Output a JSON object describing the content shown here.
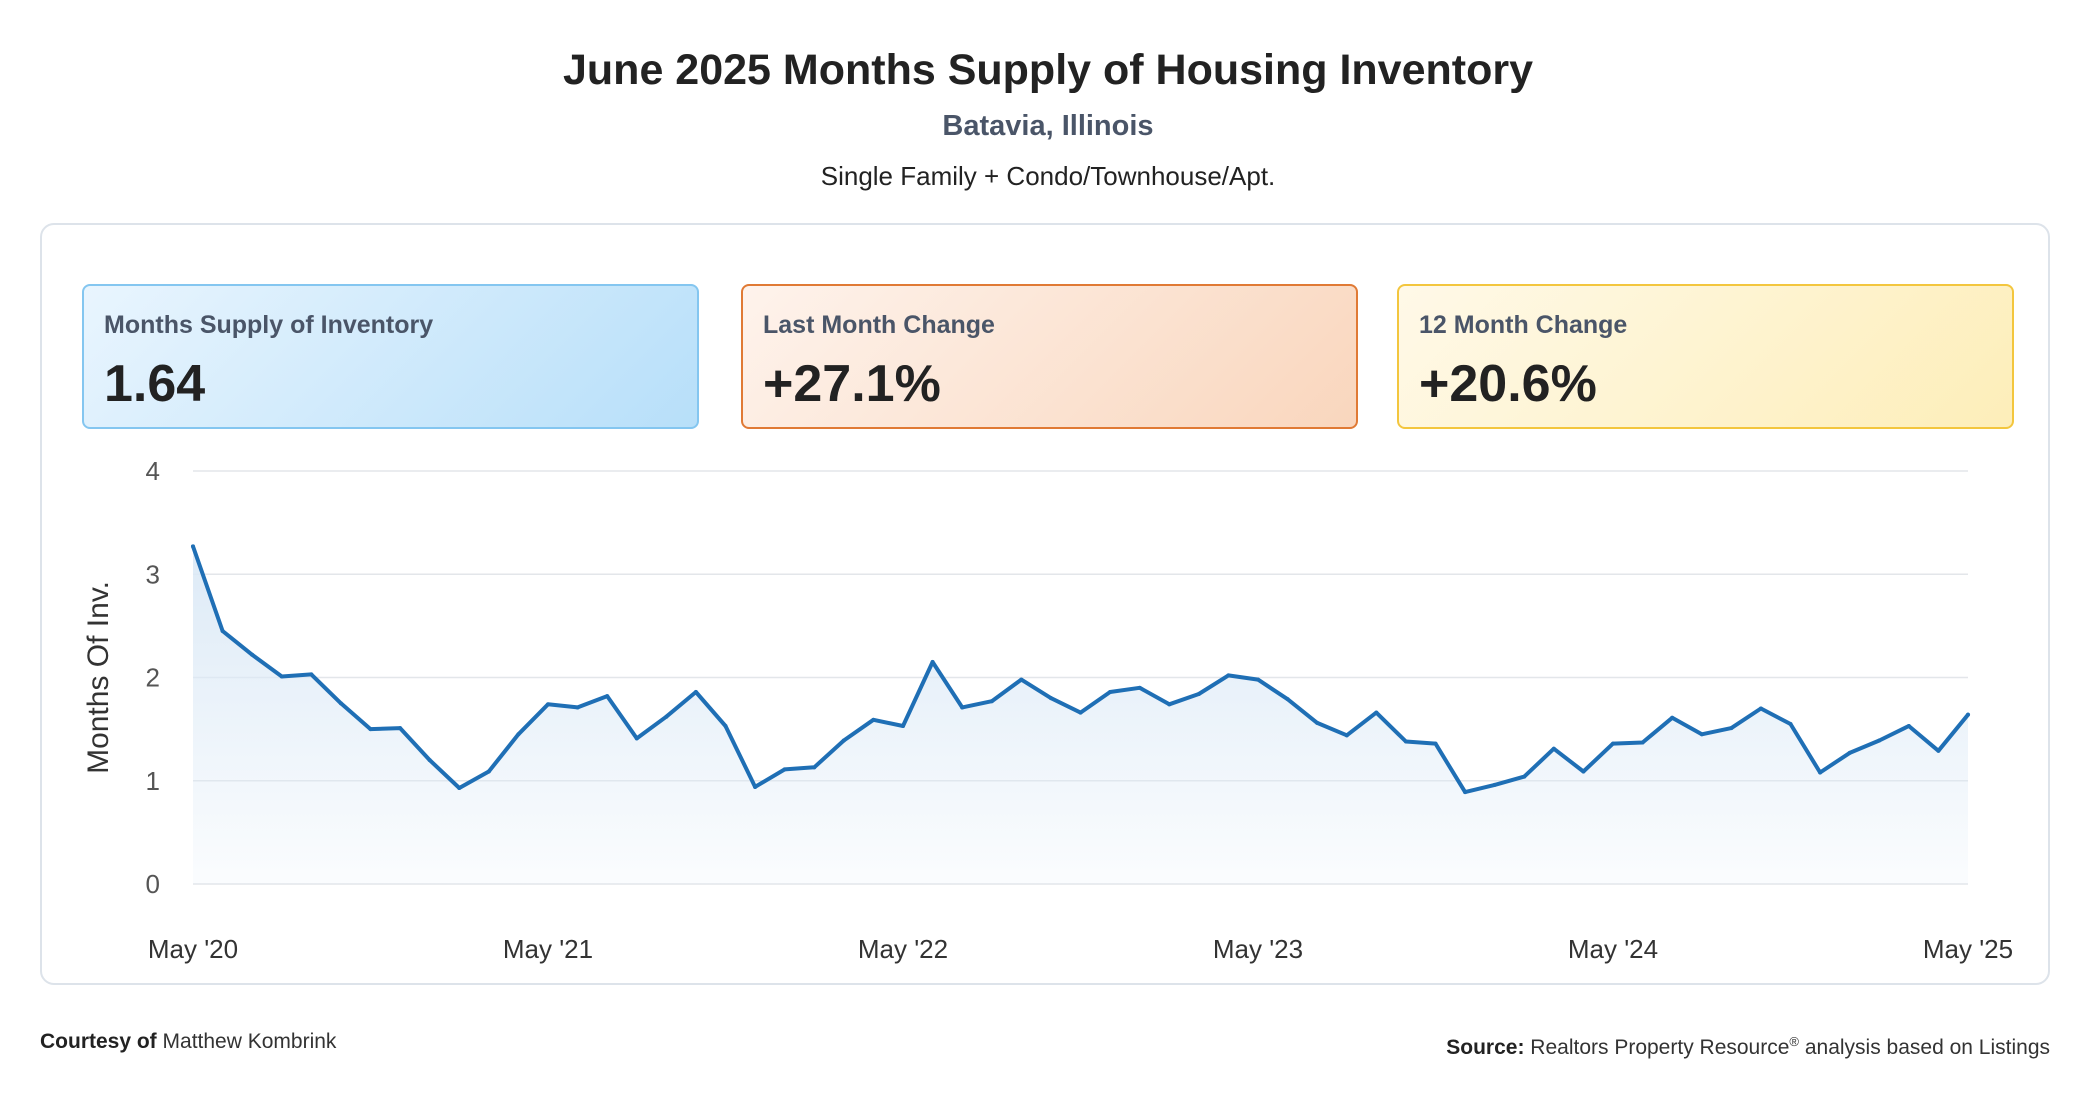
{
  "header": {
    "title": "June 2025 Months Supply of Housing Inventory",
    "location": "Batavia, Illinois",
    "segment": "Single Family + Condo/Townhouse/Apt."
  },
  "cards": [
    {
      "label": "Months Supply of Inventory",
      "value": "1.64",
      "accent": "#84c6f0"
    },
    {
      "label": "Last Month Change",
      "value": "+27.1%",
      "accent": "#e07a35"
    },
    {
      "label": "12 Month Change",
      "value": "+20.6%",
      "accent": "#f3c63e"
    }
  ],
  "chart_data": {
    "type": "area",
    "ylabel": "Months Of Inv.",
    "ylim": [
      0,
      4
    ],
    "yticks": [
      "0",
      "1",
      "2",
      "3",
      "4"
    ],
    "xticks": [
      "May '20",
      "May '21",
      "May '22",
      "May '23",
      "May '24",
      "May '25"
    ],
    "x_range": [
      "May 2020",
      "May 2025"
    ],
    "grid": true,
    "line_color": "#1f6fb5",
    "fill_color": "#dbe9f6",
    "series": [
      {
        "x": [
          "2020-05",
          "2020-06",
          "2020-07",
          "2020-08",
          "2020-09",
          "2020-10",
          "2020-11",
          "2020-12",
          "2021-01",
          "2021-02",
          "2021-03",
          "2021-04",
          "2021-05",
          "2021-06",
          "2021-07",
          "2021-08",
          "2021-09",
          "2021-10",
          "2021-11",
          "2021-12",
          "2022-01",
          "2022-02",
          "2022-03",
          "2022-04",
          "2022-05",
          "2022-06",
          "2022-07",
          "2022-08",
          "2022-09",
          "2022-10",
          "2022-11",
          "2022-12",
          "2023-01",
          "2023-02",
          "2023-03",
          "2023-04",
          "2023-05",
          "2023-06",
          "2023-07",
          "2023-08",
          "2023-09",
          "2023-10",
          "2023-11",
          "2023-12",
          "2024-01",
          "2024-02",
          "2024-03",
          "2024-04",
          "2024-05",
          "2024-06",
          "2024-07",
          "2024-08",
          "2024-09",
          "2024-10",
          "2024-11",
          "2024-12",
          "2025-01",
          "2025-02",
          "2025-03",
          "2025-04",
          "2025-05"
        ],
        "values": [
          3.27,
          2.45,
          2.22,
          2.01,
          2.03,
          1.75,
          1.5,
          1.51,
          1.2,
          0.93,
          1.09,
          1.45,
          1.74,
          1.71,
          1.82,
          1.41,
          1.62,
          1.86,
          1.53,
          0.94,
          1.11,
          1.13,
          1.39,
          1.59,
          1.53,
          2.15,
          1.71,
          1.77,
          1.98,
          1.8,
          1.66,
          1.86,
          1.9,
          1.74,
          1.84,
          2.02,
          1.98,
          1.79,
          1.56,
          1.44,
          1.66,
          1.38,
          1.36,
          0.89,
          0.96,
          1.04,
          1.31,
          1.09,
          1.36,
          1.37,
          1.61,
          1.45,
          1.51,
          1.7,
          1.55,
          1.08,
          1.27,
          1.39,
          1.53,
          1.29,
          1.64
        ]
      }
    ]
  },
  "footer": {
    "courtesy_label": "Courtesy of",
    "courtesy_name": "Matthew Kombrink",
    "source_label": "Source:",
    "source_text": "Realtors Property Resource",
    "source_mark": "®",
    "source_suffix": "analysis based on Listings"
  }
}
